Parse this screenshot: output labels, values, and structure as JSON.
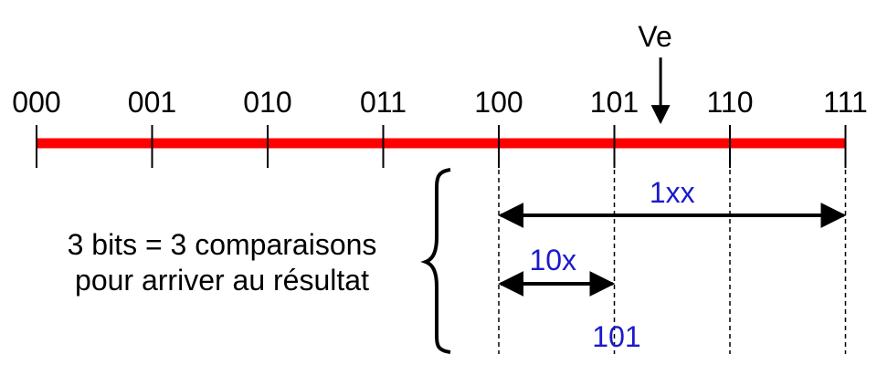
{
  "colors": {
    "axis": "#ff0000",
    "text": "#000000",
    "range_label": "#1a1acc"
  },
  "scale": {
    "codes": [
      "000",
      "001",
      "010",
      "011",
      "100",
      "101",
      "110",
      "111"
    ]
  },
  "input": {
    "label": "Ve",
    "value": 5.4
  },
  "ranges": [
    {
      "label": "1xx",
      "from": 4,
      "to": 7
    },
    {
      "label": "10x",
      "from": 4,
      "to": 5
    }
  ],
  "result": {
    "label": "101"
  },
  "note": {
    "line1": "3 bits = 3 comparaisons",
    "line2": "pour arriver au résultat"
  }
}
